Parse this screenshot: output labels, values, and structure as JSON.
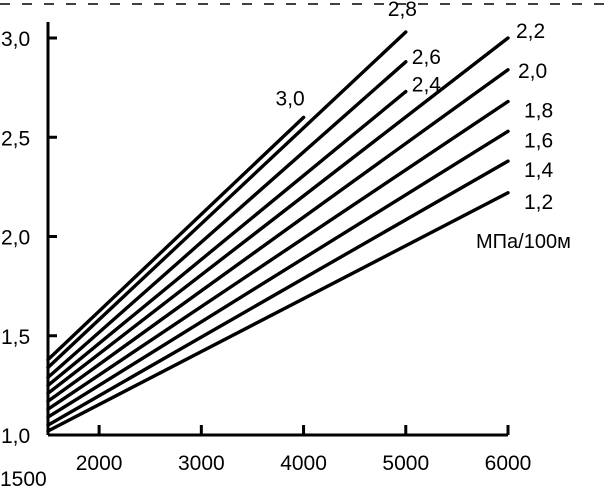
{
  "chart_data": {
    "type": "line",
    "x_ticks": [
      {
        "value": 1500,
        "label": "1500"
      },
      {
        "value": 2000,
        "label": "2000"
      },
      {
        "value": 3000,
        "label": "3000"
      },
      {
        "value": 4000,
        "label": "4000"
      },
      {
        "value": 5000,
        "label": "5000"
      },
      {
        "value": 6000,
        "label": "6000"
      }
    ],
    "y_ticks": [
      {
        "value": 1.0,
        "label": "1,0"
      },
      {
        "value": 1.5,
        "label": "1,5"
      },
      {
        "value": 2.0,
        "label": "2,0"
      },
      {
        "value": 2.5,
        "label": "2,5"
      },
      {
        "value": 3.0,
        "label": "3,0"
      }
    ],
    "xlim": [
      1500,
      6000
    ],
    "ylim": [
      1.0,
      3.0
    ],
    "grid": false,
    "unit_label": "МПа/100м",
    "series": [
      {
        "name": "3,0",
        "x": [
          1500,
          4000
        ],
        "y": [
          1.38,
          2.6
        ]
      },
      {
        "name": "2,8",
        "x": [
          1500,
          5000
        ],
        "y": [
          1.34,
          3.03
        ]
      },
      {
        "name": "2,6",
        "x": [
          1500,
          5000
        ],
        "y": [
          1.29,
          2.88
        ]
      },
      {
        "name": "2,4",
        "x": [
          1500,
          5000
        ],
        "y": [
          1.25,
          2.73
        ]
      },
      {
        "name": "2,2",
        "x": [
          1500,
          6000
        ],
        "y": [
          1.21,
          3.0
        ]
      },
      {
        "name": "2,0",
        "x": [
          1500,
          6000
        ],
        "y": [
          1.17,
          2.84
        ]
      },
      {
        "name": "1,8",
        "x": [
          1500,
          6000
        ],
        "y": [
          1.13,
          2.68
        ]
      },
      {
        "name": "1,6",
        "x": [
          1500,
          6000
        ],
        "y": [
          1.09,
          2.53
        ]
      },
      {
        "name": "1,4",
        "x": [
          1500,
          6000
        ],
        "y": [
          1.05,
          2.38
        ]
      },
      {
        "name": "1,2",
        "x": [
          1500,
          6000
        ],
        "y": [
          1.02,
          2.22
        ]
      }
    ]
  }
}
